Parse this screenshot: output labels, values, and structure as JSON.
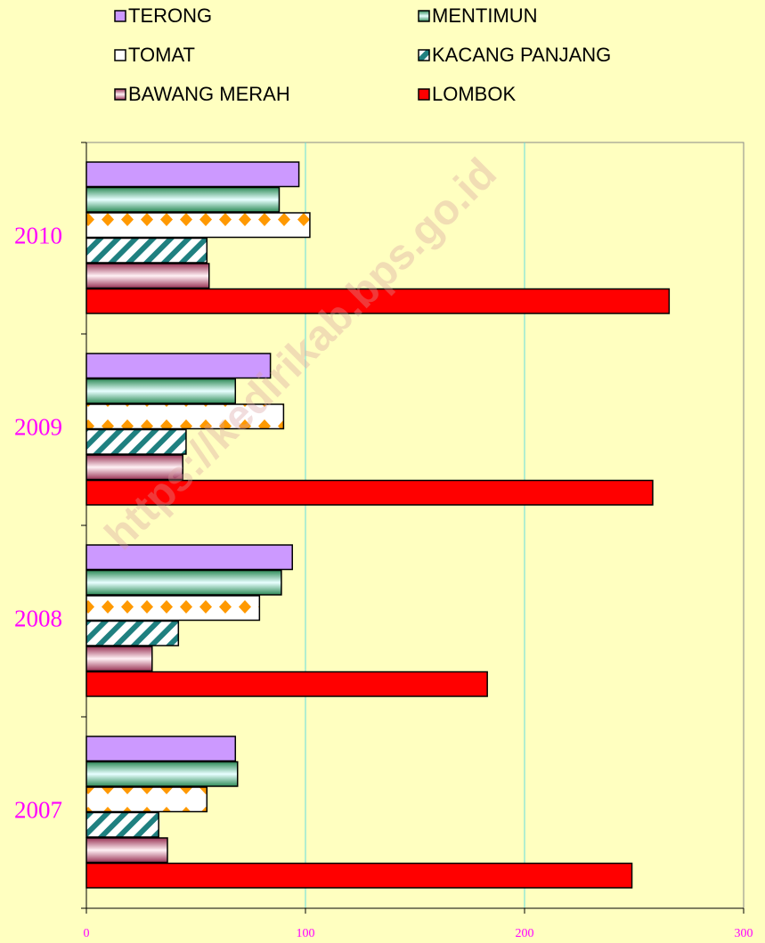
{
  "chart_data": {
    "type": "hbar",
    "watermark": "https://kedirikab.bps.go.id",
    "categories": [
      "2007",
      "2008",
      "2009",
      "2010"
    ],
    "series": [
      {
        "name": "TERONG",
        "color": "#cc99ff",
        "pattern": "solid",
        "values": [
          68,
          94,
          84,
          97
        ]
      },
      {
        "name": "MENTIMUN",
        "color": "#2e8b57",
        "pattern": "gradient",
        "values": [
          69,
          89,
          68,
          88
        ]
      },
      {
        "name": "TOMAT",
        "color": "#ff9900",
        "pattern": "diamonds",
        "values": [
          55,
          79,
          90,
          102
        ]
      },
      {
        "name": "KACANG PANJANG",
        "color": "#1f8080",
        "pattern": "stripes",
        "values": [
          33,
          42,
          45.5,
          55
        ]
      },
      {
        "name": "BAWANG MERAH",
        "color": "#993355",
        "pattern": "gradient",
        "values": [
          37,
          30,
          44,
          56
        ]
      },
      {
        "name": "LOMBOK",
        "color": "#ff0000",
        "pattern": "solid",
        "values": [
          249,
          183,
          258.5,
          266
        ]
      }
    ],
    "xlim": [
      0,
      300
    ],
    "xticks": [
      0,
      100,
      200,
      300
    ],
    "grid": true
  }
}
